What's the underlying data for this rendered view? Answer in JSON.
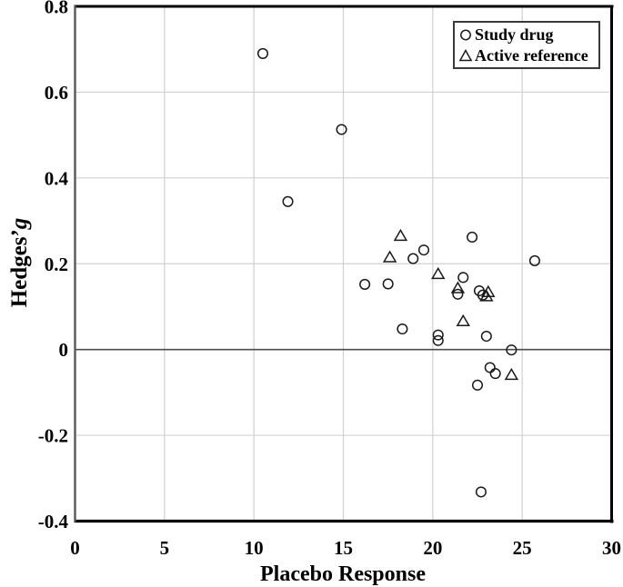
{
  "figure": {
    "x_axis_title": "Placebo Response",
    "y_axis_title_prefix": "Hedges’",
    "y_axis_title_italic": "g"
  },
  "legend": {
    "items": [
      {
        "marker": "circle-icon",
        "label": "Study drug"
      },
      {
        "marker": "triangle-icon",
        "label": "Active reference"
      }
    ]
  },
  "colors": {
    "marker_stroke": "#1a1a1a",
    "gridline": "#d0d0d0",
    "zero_line": "#4d4d4d",
    "border": "#000000",
    "left_axis": "#595959",
    "background": "#ffffff"
  },
  "chart_data": {
    "type": "scatter",
    "title": "",
    "xlabel": "Placebo Response",
    "ylabel": "Hedges'g",
    "xlim": [
      0,
      30
    ],
    "ylim": [
      -0.4,
      0.8
    ],
    "x_ticks": [
      0,
      5,
      10,
      15,
      20,
      25,
      30
    ],
    "x_tick_labels": [
      "0",
      "5",
      "10",
      "15",
      "20",
      "25",
      "30"
    ],
    "y_ticks": [
      0.8,
      0.6,
      0.4,
      0.2,
      0,
      -0.2,
      -0.4
    ],
    "y_tick_labels": [
      "0.8",
      "0.6",
      "0.4",
      "0.2",
      "0",
      "-0.2",
      "-0.4"
    ],
    "grid": true,
    "zero_line": true,
    "legend_position": "top-right",
    "series": [
      {
        "name": "Study drug",
        "marker": "circle",
        "points": [
          [
            10.5,
            0.69
          ],
          [
            11.9,
            0.345
          ],
          [
            14.9,
            0.513
          ],
          [
            16.2,
            0.152
          ],
          [
            17.5,
            0.153
          ],
          [
            18.3,
            0.048
          ],
          [
            18.9,
            0.212
          ],
          [
            19.5,
            0.232
          ],
          [
            20.3,
            0.034
          ],
          [
            20.3,
            0.021
          ],
          [
            21.4,
            0.129
          ],
          [
            21.7,
            0.168
          ],
          [
            22.2,
            0.262
          ],
          [
            22.5,
            -0.083
          ],
          [
            22.6,
            0.137
          ],
          [
            22.8,
            0.127
          ],
          [
            23.0,
            0.031
          ],
          [
            23.2,
            -0.042
          ],
          [
            23.5,
            -0.056
          ],
          [
            24.4,
            -0.001
          ],
          [
            25.7,
            0.207
          ],
          [
            22.7,
            -0.332
          ]
        ]
      },
      {
        "name": "Active reference",
        "marker": "triangle",
        "points": [
          [
            17.6,
            0.215
          ],
          [
            18.2,
            0.265
          ],
          [
            20.3,
            0.176
          ],
          [
            21.4,
            0.143
          ],
          [
            21.7,
            0.066
          ],
          [
            23.0,
            0.124
          ],
          [
            23.1,
            0.134
          ],
          [
            24.4,
            -0.059
          ]
        ]
      }
    ]
  }
}
